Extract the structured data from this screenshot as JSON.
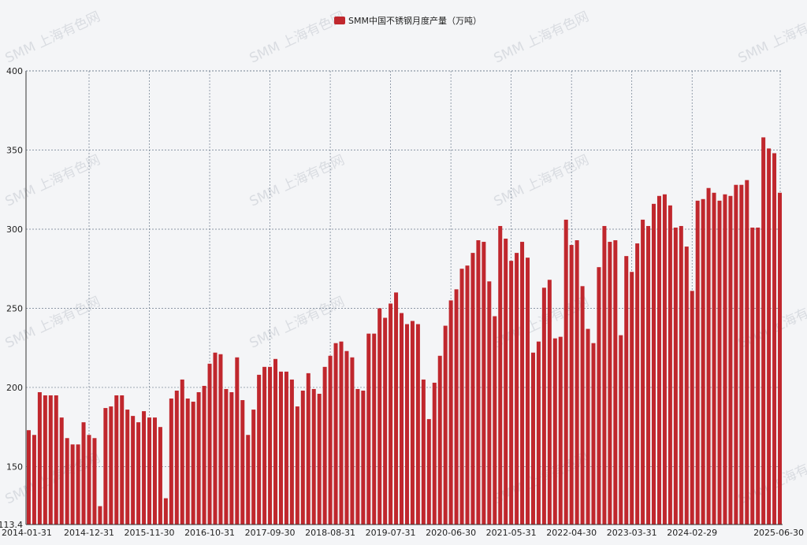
{
  "watermark": "SMM 上海有色网",
  "colors": {
    "bar": "#c0272d",
    "grid": "#6b7a8c",
    "axis": "#333333"
  },
  "chart_data": {
    "type": "bar",
    "series": [
      {
        "name": "SMM中国不锈钢月度产量（万吨）",
        "x": [
          "2014-01-31",
          "2014-02-28",
          "2014-03-31",
          "2014-04-30",
          "2014-05-31",
          "2014-06-30",
          "2014-07-31",
          "2014-08-31",
          "2014-09-30",
          "2014-10-31",
          "2014-11-30",
          "2014-12-31",
          "2015-01-31",
          "2015-02-28",
          "2015-03-31",
          "2015-04-30",
          "2015-05-31",
          "2015-06-30",
          "2015-07-31",
          "2015-08-31",
          "2015-09-30",
          "2015-10-31",
          "2015-11-30",
          "2015-12-31",
          "2016-01-31",
          "2016-02-29",
          "2016-03-31",
          "2016-04-30",
          "2016-05-31",
          "2016-06-30",
          "2016-07-31",
          "2016-08-31",
          "2016-09-30",
          "2016-10-31",
          "2016-11-30",
          "2016-12-31",
          "2017-01-31",
          "2017-02-28",
          "2017-03-31",
          "2017-04-30",
          "2017-05-31",
          "2017-06-30",
          "2017-07-31",
          "2017-08-31",
          "2017-09-30",
          "2017-10-31",
          "2017-11-30",
          "2017-12-31",
          "2018-01-31",
          "2018-02-28",
          "2018-03-31",
          "2018-04-30",
          "2018-05-31",
          "2018-06-30",
          "2018-07-31",
          "2018-08-31",
          "2018-09-30",
          "2018-10-31",
          "2018-11-30",
          "2018-12-31",
          "2019-01-31",
          "2019-02-28",
          "2019-03-31",
          "2019-04-30",
          "2019-05-31",
          "2019-06-30",
          "2019-07-31",
          "2019-08-31",
          "2019-09-30",
          "2019-10-31",
          "2019-11-30",
          "2019-12-31",
          "2020-01-31",
          "2020-02-29",
          "2020-03-31",
          "2020-04-30",
          "2020-05-31",
          "2020-06-30",
          "2020-07-31",
          "2020-08-31",
          "2020-09-30",
          "2020-10-31",
          "2020-11-30",
          "2020-12-31",
          "2021-01-31",
          "2021-02-28",
          "2021-03-31",
          "2021-04-30",
          "2021-05-31",
          "2021-06-30",
          "2021-07-31",
          "2021-08-31",
          "2021-09-30",
          "2021-10-31",
          "2021-11-30",
          "2021-12-31",
          "2022-01-31",
          "2022-02-28",
          "2022-03-31",
          "2022-04-30",
          "2022-05-31",
          "2022-06-30",
          "2022-07-31",
          "2022-08-31",
          "2022-09-30",
          "2022-10-31",
          "2022-11-30",
          "2022-12-31",
          "2023-01-31",
          "2023-02-28",
          "2023-03-31",
          "2023-04-30",
          "2023-05-31",
          "2023-06-30",
          "2023-07-31",
          "2023-08-31",
          "2023-09-30",
          "2023-10-31",
          "2023-11-30",
          "2023-12-31",
          "2024-01-31",
          "2024-02-29",
          "2024-03-31",
          "2024-04-30",
          "2024-05-31",
          "2024-06-30",
          "2024-07-31",
          "2024-08-31",
          "2024-09-30",
          "2024-10-31",
          "2024-11-30",
          "2024-12-31",
          "2025-01-31",
          "2025-02-28",
          "2025-03-31",
          "2025-04-30",
          "2025-05-31",
          "2025-06-30"
        ],
        "values": [
          173,
          170,
          197,
          195,
          195,
          195,
          181,
          168,
          164,
          164,
          178,
          170,
          168,
          125,
          187,
          188,
          195,
          195,
          186,
          182,
          178,
          185,
          181,
          181,
          175,
          130,
          193,
          198,
          205,
          193,
          191,
          197,
          201,
          215,
          222,
          221,
          199,
          197,
          219,
          192,
          170,
          186,
          208,
          213,
          213,
          218,
          210,
          210,
          205,
          188,
          198,
          209,
          199,
          196,
          213,
          220,
          228,
          229,
          223,
          219,
          199,
          198,
          234,
          234,
          250,
          244,
          253,
          260,
          247,
          240,
          242,
          240,
          205,
          180,
          203,
          220,
          239,
          255,
          262,
          275,
          277,
          285,
          293,
          292,
          267,
          245,
          302,
          294,
          280,
          285,
          292,
          282,
          222,
          229,
          263,
          268,
          231,
          232,
          306,
          290,
          293,
          264,
          237,
          228,
          276,
          302,
          292,
          293,
          233,
          283,
          273,
          291,
          306,
          302,
          316,
          321,
          322,
          315,
          301,
          302,
          289,
          261,
          318,
          319,
          326,
          323,
          318,
          322,
          321,
          328,
          328,
          331,
          301,
          301,
          358,
          351,
          348,
          323
        ]
      }
    ],
    "x_tick_labels": [
      "2014-01-31",
      "2014-12-31",
      "2015-11-30",
      "2016-10-31",
      "2017-09-30",
      "2018-08-31",
      "2019-07-31",
      "2020-06-30",
      "2021-05-31",
      "2022-04-30",
      "2023-03-31",
      "2024-02-29",
      "2025-06-30"
    ],
    "y_tick_labels": [
      "113.4",
      "150",
      "200",
      "250",
      "300",
      "350",
      "400"
    ],
    "ylim": [
      113.4,
      400
    ],
    "xlabel": "",
    "ylabel": "",
    "grid": true,
    "legend_position": "top-center"
  }
}
